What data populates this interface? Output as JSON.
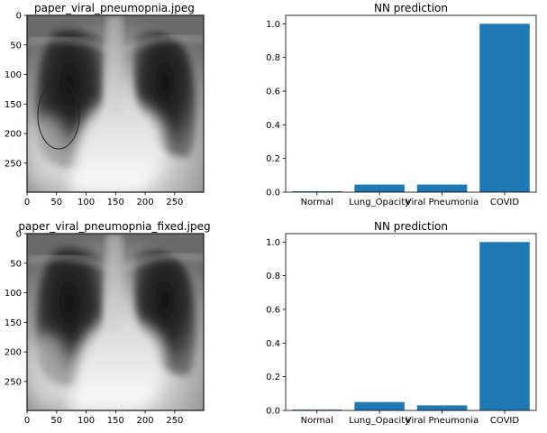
{
  "colors": {
    "bar": "#1f77b4",
    "axis": "#000000",
    "background": "#ffffff"
  },
  "chart_data": [
    {
      "type": "image",
      "title": "paper_viral_pneumopnia.jpeg",
      "x_ticks": [
        "0",
        "50",
        "100",
        "150",
        "200",
        "250"
      ],
      "y_ticks": [
        "0",
        "50",
        "100",
        "150",
        "200",
        "250"
      ],
      "xlim": [
        0,
        299
      ],
      "ylim": [
        299,
        0
      ],
      "annotation": {
        "shape": "ellipse",
        "center": [
          55,
          170
        ],
        "radius": [
          30,
          57
        ]
      }
    },
    {
      "type": "bar",
      "title": "NN prediction",
      "categories": [
        "Normal",
        "Lung_Opacity",
        "Viral Pneumonia",
        "COVID"
      ],
      "values": [
        0.005,
        0.045,
        0.045,
        1.0
      ],
      "y_ticks": [
        "0.0",
        "0.2",
        "0.4",
        "0.6",
        "0.8",
        "1.0"
      ],
      "ylim": [
        0,
        1.05
      ],
      "grid": false
    },
    {
      "type": "image",
      "title": "paper_viral_pneumopnia_fixed.jpeg",
      "x_ticks": [
        "0",
        "50",
        "100",
        "150",
        "200",
        "250"
      ],
      "y_ticks": [
        "0",
        "50",
        "100",
        "150",
        "200",
        "250"
      ],
      "xlim": [
        0,
        299
      ],
      "ylim": [
        299,
        0
      ]
    },
    {
      "type": "bar",
      "title": "NN prediction",
      "categories": [
        "Normal",
        "Lung_Opacity",
        "Viral Pneumonia",
        "COVID"
      ],
      "values": [
        0.005,
        0.05,
        0.03,
        1.0
      ],
      "y_ticks": [
        "0.0",
        "0.2",
        "0.4",
        "0.6",
        "0.8",
        "1.0"
      ],
      "ylim": [
        0,
        1.05
      ],
      "grid": false
    }
  ]
}
